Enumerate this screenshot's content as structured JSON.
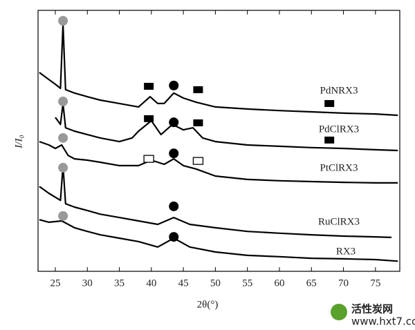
{
  "chart_data": {
    "type": "line",
    "x_label": "2θ(°)",
    "y_label": "I/I₀",
    "xlim": [
      22.3,
      78.8
    ],
    "ylim": [
      0,
      100
    ],
    "xticks": [
      25,
      30,
      35,
      40,
      45,
      50,
      55,
      60,
      65,
      70,
      75
    ],
    "series": [
      {
        "name": "PdNRX3",
        "color": "#000000",
        "x": [
          22.5,
          24,
          25,
          25.8,
          26.2,
          26.6,
          28,
          30,
          32,
          35,
          38,
          39.8,
          41,
          42,
          43.5,
          45,
          47,
          50,
          55,
          60,
          65,
          70,
          75,
          78.5
        ],
        "values": [
          76.2,
          73.5,
          71.7,
          70.1,
          94.7,
          69.6,
          68.3,
          66.9,
          65.6,
          64.3,
          63.0,
          66.9,
          64.3,
          64.3,
          68.3,
          66.4,
          64.8,
          63.0,
          62.2,
          61.6,
          61.1,
          60.6,
          60.3,
          59.8
        ]
      },
      {
        "name": "PdClRX3",
        "color": "#000000",
        "x": [
          25,
          25.8,
          26.2,
          26.6,
          28,
          30,
          32,
          35,
          37,
          38,
          40,
          41.5,
          43.3,
          45,
          46.5,
          48,
          50,
          55,
          60,
          65,
          70,
          75,
          78.5
        ],
        "values": [
          59.0,
          56.3,
          64.3,
          55.0,
          53.7,
          52.4,
          51.1,
          49.7,
          51.1,
          53.7,
          57.7,
          52.4,
          56.3,
          54.2,
          55.0,
          51.1,
          49.7,
          48.4,
          47.9,
          47.4,
          47.1,
          46.6,
          46.3
        ]
      },
      {
        "name": "PtClRX3",
        "color": "#000000",
        "x": [
          22.5,
          24,
          25,
          26,
          27,
          28,
          30,
          32,
          35,
          38,
          40,
          42,
          43.5,
          45,
          47,
          50,
          55,
          60,
          65,
          70,
          75,
          78.5
        ],
        "values": [
          49.7,
          48.4,
          47.1,
          48.4,
          44.4,
          43.1,
          42.6,
          41.8,
          40.5,
          40.5,
          42.6,
          41.0,
          43.1,
          40.5,
          39.2,
          36.5,
          35.2,
          34.7,
          34.4,
          34.1,
          33.9,
          33.9
        ]
      },
      {
        "name": "RuClRX3",
        "color": "#000000",
        "x": [
          22.5,
          24,
          25.8,
          26.2,
          26.6,
          28,
          30,
          32,
          35,
          38,
          41,
          43.5,
          46,
          50,
          55,
          60,
          65,
          70,
          75,
          77.5
        ],
        "values": [
          32.5,
          29.9,
          27.2,
          40.5,
          25.9,
          24.6,
          23.3,
          21.9,
          20.6,
          19.3,
          18.0,
          20.6,
          18.0,
          16.7,
          15.3,
          14.6,
          14.0,
          13.5,
          13.2,
          13.0
        ]
      },
      {
        "name": "RX3",
        "color": "#000000",
        "x": [
          22.5,
          24,
          26,
          28,
          30,
          32,
          35,
          38,
          41,
          43.5,
          46,
          50,
          55,
          60,
          65,
          70,
          75,
          78.5
        ],
        "values": [
          19.8,
          18.8,
          19.3,
          16.7,
          15.3,
          14.0,
          12.7,
          11.4,
          9.3,
          12.7,
          9.3,
          7.4,
          6.1,
          5.6,
          5.0,
          4.8,
          4.5,
          3.9
        ]
      }
    ],
    "markers": [
      {
        "shape": "circle",
        "color": "#999999",
        "x": 26.2,
        "y": 96.0
      },
      {
        "shape": "circle",
        "color": "#999999",
        "x": 26.2,
        "y": 65.1
      },
      {
        "shape": "circle",
        "color": "#999999",
        "x": 26.2,
        "y": 51.1
      },
      {
        "shape": "circle",
        "color": "#999999",
        "x": 26.2,
        "y": 39.7
      },
      {
        "shape": "circle",
        "color": "#999999",
        "x": 26.2,
        "y": 21.2
      },
      {
        "shape": "circle",
        "color": "#000000",
        "x": 43.5,
        "y": 71.2
      },
      {
        "shape": "circle",
        "color": "#000000",
        "x": 43.5,
        "y": 57.1
      },
      {
        "shape": "circle",
        "color": "#000000",
        "x": 43.5,
        "y": 45.2
      },
      {
        "shape": "circle",
        "color": "#000000",
        "x": 43.5,
        "y": 24.9
      },
      {
        "shape": "circle",
        "color": "#000000",
        "x": 43.5,
        "y": 13.2
      },
      {
        "shape": "square",
        "color": "#000000",
        "x": 39.6,
        "y": 70.9
      },
      {
        "shape": "square",
        "color": "#000000",
        "x": 47.3,
        "y": 69.6
      },
      {
        "shape": "square",
        "color": "#000000",
        "x": 67.8,
        "y": 64.3
      },
      {
        "shape": "square",
        "color": "#000000",
        "x": 39.6,
        "y": 58.5
      },
      {
        "shape": "square",
        "color": "#000000",
        "x": 47.3,
        "y": 56.9
      },
      {
        "shape": "square",
        "color": "#000000",
        "x": 67.8,
        "y": 50.3
      },
      {
        "shape": "open-square",
        "color": "#000000",
        "x": 39.6,
        "y": 43.1
      },
      {
        "shape": "open-square",
        "color": "#000000",
        "x": 47.3,
        "y": 42.3
      }
    ]
  },
  "watermark": {
    "title": "活性炭网",
    "url": "www.hxt7.com"
  }
}
